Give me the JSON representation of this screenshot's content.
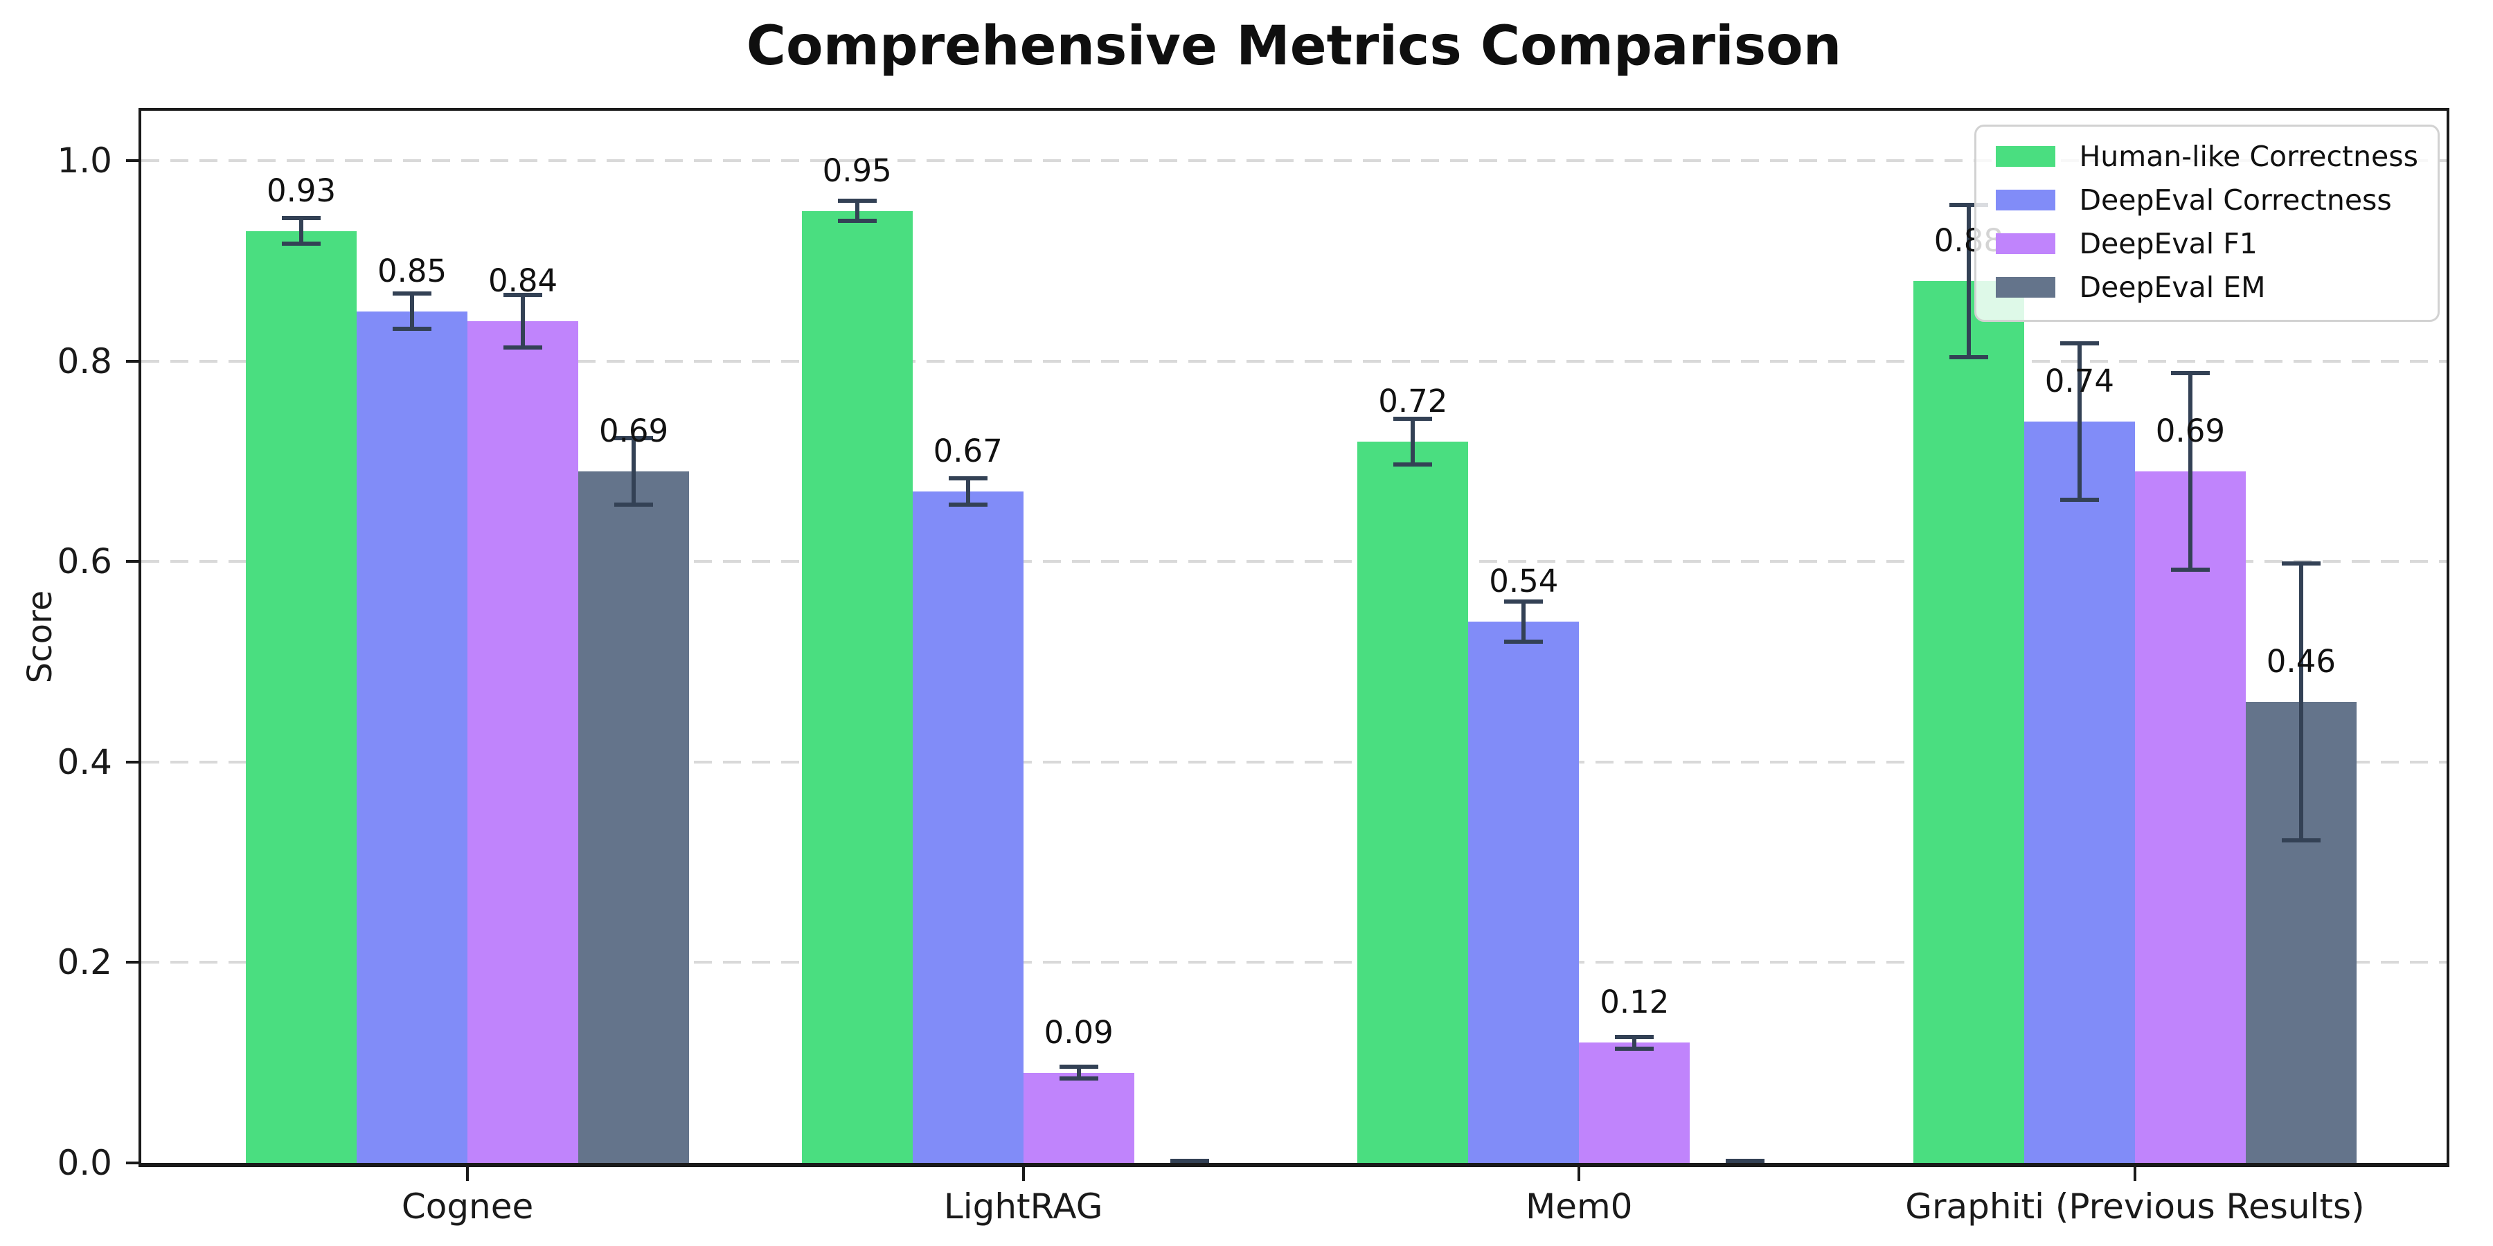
{
  "chart_data": {
    "type": "bar",
    "title": "Comprehensive Metrics Comparison",
    "xlabel": "",
    "ylabel": "Score",
    "ylim": [
      0,
      1.05
    ],
    "yticks": [
      "0.0",
      "0.2",
      "0.4",
      "0.6",
      "0.8",
      "1.0"
    ],
    "grid": "horizontal dashed lines at each y tick",
    "grid_color": "#d9d9d9",
    "legend_position": "upper right",
    "error_bar_color": "#334155",
    "categories": [
      "Cognee",
      "LightRAG",
      "Mem0",
      "Graphiti (Previous Results)"
    ],
    "series": [
      {
        "name": "Human-like Correctness",
        "color": "#4ade80",
        "values": [
          0.93,
          0.95,
          0.72,
          0.88
        ],
        "errors": [
          0.015,
          0.012,
          0.025,
          0.078
        ],
        "labels": [
          "0.93",
          "0.95",
          "0.72",
          "0.88"
        ]
      },
      {
        "name": "DeepEval Correctness",
        "color": "#818cf8",
        "values": [
          0.85,
          0.67,
          0.54,
          0.74
        ],
        "errors": [
          0.02,
          0.015,
          0.022,
          0.08
        ],
        "labels": [
          "0.85",
          "0.67",
          "0.54",
          "0.74"
        ]
      },
      {
        "name": "DeepEval F1",
        "color": "#c084fc",
        "values": [
          0.84,
          0.09,
          0.12,
          0.69
        ],
        "errors": [
          0.028,
          0.008,
          0.008,
          0.1
        ],
        "labels": [
          "0.84",
          "0.09",
          "0.12",
          "0.69"
        ]
      },
      {
        "name": "DeepEval EM",
        "color": "#64748b",
        "values": [
          0.69,
          0.0,
          0.0,
          0.46
        ],
        "errors": [
          0.035,
          0.004,
          0.004,
          0.14
        ],
        "labels": [
          "0.69",
          null,
          null,
          "0.46"
        ]
      }
    ]
  }
}
